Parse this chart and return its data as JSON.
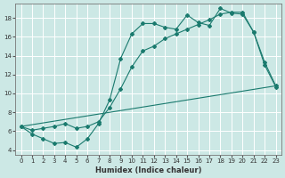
{
  "xlabel": "Humidex (Indice chaleur)",
  "bg_color": "#cce8e5",
  "line_color": "#1a7a6e",
  "grid_color": "#ffffff",
  "xlim": [
    -0.5,
    23.5
  ],
  "ylim": [
    3.5,
    19.5
  ],
  "xticks": [
    0,
    1,
    2,
    3,
    4,
    5,
    6,
    7,
    8,
    9,
    10,
    11,
    12,
    13,
    14,
    15,
    16,
    17,
    18,
    19,
    20,
    21,
    22,
    23
  ],
  "yticks": [
    4,
    6,
    8,
    10,
    12,
    14,
    16,
    18
  ],
  "line1_x": [
    0,
    1,
    2,
    3,
    4,
    5,
    6,
    7,
    8,
    9,
    10,
    11,
    12,
    13,
    14,
    15,
    16,
    17,
    18,
    19,
    20,
    21,
    22,
    23
  ],
  "line1_y": [
    6.5,
    5.7,
    5.2,
    4.7,
    4.8,
    4.3,
    5.2,
    6.8,
    9.3,
    13.7,
    16.3,
    17.4,
    17.4,
    17.0,
    16.8,
    18.3,
    17.5,
    17.2,
    19.0,
    18.5,
    18.4,
    16.5,
    13.3,
    10.8
  ],
  "line2_x": [
    0,
    1,
    2,
    3,
    4,
    5,
    6,
    7,
    8,
    9,
    10,
    11,
    12,
    13,
    14,
    15,
    16,
    17,
    18,
    19,
    20,
    21,
    22,
    23
  ],
  "line2_y": [
    6.5,
    6.1,
    6.3,
    6.5,
    6.8,
    6.3,
    6.5,
    7.0,
    8.5,
    10.5,
    12.8,
    14.5,
    15.0,
    15.8,
    16.3,
    16.8,
    17.3,
    17.8,
    18.4,
    18.6,
    18.6,
    16.5,
    13.0,
    10.7
  ],
  "line3_x": [
    0,
    23
  ],
  "line3_y": [
    6.5,
    10.8
  ]
}
